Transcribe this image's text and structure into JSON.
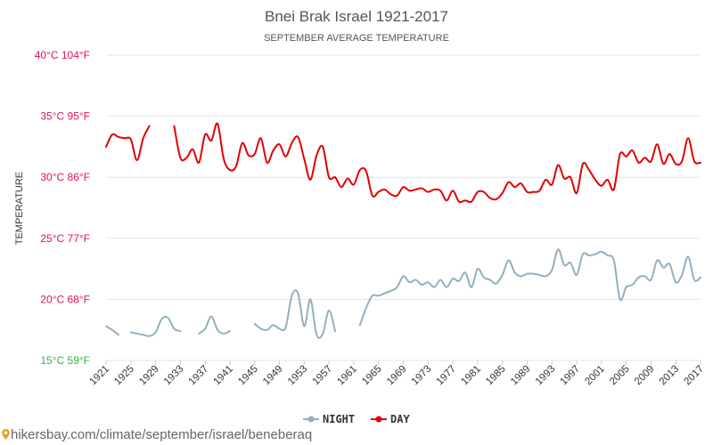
{
  "chart_data": {
    "type": "line",
    "title": "Bnei Brak Israel 1921-2017",
    "subtitle": "SEPTEMBER AVERAGE TEMPERATURE",
    "ylabel": "TEMPERATURE",
    "ylim": [
      15,
      40
    ],
    "xlim": [
      1921,
      2017
    ],
    "y_ticks": [
      {
        "value": 40,
        "label": "40°C 104°F",
        "color": "#e0115f"
      },
      {
        "value": 35,
        "label": "35°C 95°F",
        "color": "#e0115f"
      },
      {
        "value": 30,
        "label": "30°C 86°F",
        "color": "#e0115f"
      },
      {
        "value": 25,
        "label": "25°C 77°F",
        "color": "#e0115f"
      },
      {
        "value": 20,
        "label": "20°C 68°F",
        "color": "#e0115f"
      },
      {
        "value": 15,
        "label": "15°C 59°F",
        "color": "#3cb043"
      }
    ],
    "x_ticks": [
      1921,
      1925,
      1929,
      1933,
      1937,
      1941,
      1945,
      1949,
      1953,
      1957,
      1961,
      1965,
      1969,
      1973,
      1977,
      1981,
      1985,
      1989,
      1993,
      1997,
      2001,
      2005,
      2009,
      2013,
      2017
    ],
    "grid": true,
    "legend_position": "bottom",
    "series": [
      {
        "name": "NIGHT",
        "color": "#92b0bd",
        "x": [
          1921,
          1922,
          1923,
          1924,
          1925,
          1926,
          1927,
          1928,
          1929,
          1930,
          1931,
          1932,
          1933,
          1934,
          1935,
          1936,
          1937,
          1938,
          1939,
          1940,
          1941,
          1942,
          1943,
          1944,
          1945,
          1946,
          1947,
          1948,
          1949,
          1950,
          1951,
          1952,
          1953,
          1954,
          1955,
          1956,
          1957,
          1958,
          1959,
          1960,
          1961,
          1962,
          1963,
          1964,
          1965,
          1966,
          1967,
          1968,
          1969,
          1970,
          1971,
          1972,
          1973,
          1974,
          1975,
          1976,
          1977,
          1978,
          1979,
          1980,
          1981,
          1982,
          1983,
          1984,
          1985,
          1986,
          1987,
          1988,
          1989,
          1990,
          1991,
          1992,
          1993,
          1994,
          1995,
          1996,
          1997,
          1998,
          1999,
          2000,
          2001,
          2002,
          2003,
          2004,
          2005,
          2006,
          2007,
          2008,
          2009,
          2010,
          2011,
          2012,
          2013,
          2014,
          2015,
          2016,
          2017
        ],
        "values": [
          17.8,
          17.5,
          17.1,
          null,
          17.3,
          17.2,
          17.1,
          17.0,
          17.3,
          18.4,
          18.5,
          17.6,
          17.4,
          null,
          null,
          17.2,
          17.6,
          18.6,
          17.5,
          17.2,
          17.4,
          null,
          null,
          null,
          18.0,
          17.6,
          17.5,
          17.9,
          17.6,
          17.7,
          20.3,
          20.5,
          17.8,
          20.0,
          17.1,
          17.2,
          19.1,
          17.4,
          null,
          null,
          null,
          17.9,
          19.3,
          20.3,
          20.3,
          20.5,
          20.7,
          21.0,
          21.9,
          21.4,
          21.6,
          21.2,
          21.4,
          21.0,
          21.6,
          21.0,
          21.7,
          21.5,
          22.2,
          21.0,
          22.5,
          21.8,
          21.6,
          21.3,
          22.0,
          23.2,
          22.2,
          21.9,
          22.1,
          22.1,
          22.0,
          21.9,
          22.4,
          24.1,
          22.8,
          23.0,
          22.0,
          23.7,
          23.6,
          23.7,
          23.9,
          23.6,
          23.2,
          20.0,
          21.0,
          21.2,
          21.8,
          21.9,
          21.6,
          23.2,
          22.6,
          22.9,
          21.4,
          22.0,
          23.5,
          21.6,
          21.8
        ]
      },
      {
        "name": "DAY",
        "color": "#e00000",
        "x": [
          1921,
          1922,
          1923,
          1924,
          1925,
          1926,
          1927,
          1928,
          1929,
          1930,
          1931,
          1932,
          1933,
          1934,
          1935,
          1936,
          1937,
          1938,
          1939,
          1940,
          1941,
          1942,
          1943,
          1944,
          1945,
          1946,
          1947,
          1948,
          1949,
          1950,
          1951,
          1952,
          1953,
          1954,
          1955,
          1956,
          1957,
          1958,
          1959,
          1960,
          1961,
          1962,
          1963,
          1964,
          1965,
          1966,
          1967,
          1968,
          1969,
          1970,
          1971,
          1972,
          1973,
          1974,
          1975,
          1976,
          1977,
          1978,
          1979,
          1980,
          1981,
          1982,
          1983,
          1984,
          1985,
          1986,
          1987,
          1988,
          1989,
          1990,
          1991,
          1992,
          1993,
          1994,
          1995,
          1996,
          1997,
          1998,
          1999,
          2000,
          2001,
          2002,
          2003,
          2004,
          2005,
          2006,
          2007,
          2008,
          2009,
          2010,
          2011,
          2012,
          2013,
          2014,
          2015,
          2016,
          2017
        ],
        "values": [
          32.5,
          33.5,
          33.3,
          33.2,
          33.1,
          31.4,
          33.2,
          34.2,
          null,
          null,
          null,
          34.2,
          31.6,
          31.6,
          32.3,
          31.2,
          33.5,
          33.0,
          34.4,
          31.5,
          30.6,
          30.9,
          32.8,
          31.8,
          31.9,
          33.2,
          31.2,
          32.2,
          32.7,
          31.7,
          32.8,
          33.3,
          31.5,
          29.8,
          31.8,
          32.5,
          30.0,
          30.0,
          29.2,
          29.9,
          29.4,
          30.6,
          30.5,
          28.5,
          28.8,
          29.0,
          28.6,
          28.5,
          29.2,
          28.9,
          29.0,
          29.1,
          28.8,
          29.0,
          28.9,
          28.1,
          28.9,
          28.0,
          28.1,
          28.0,
          28.8,
          28.8,
          28.3,
          28.2,
          28.7,
          29.6,
          29.2,
          29.5,
          28.8,
          28.8,
          28.9,
          29.8,
          29.4,
          31.0,
          29.9,
          30.0,
          28.7,
          31.1,
          30.6,
          29.8,
          29.3,
          29.8,
          29.0,
          31.9,
          31.7,
          32.2,
          31.2,
          31.6,
          31.3,
          32.7,
          31.1,
          31.9,
          31.1,
          31.3,
          33.2,
          31.3,
          31.2
        ]
      }
    ]
  },
  "footer": {
    "source_text": "hikersbay.com/climate/september/israel/beneberaq"
  }
}
